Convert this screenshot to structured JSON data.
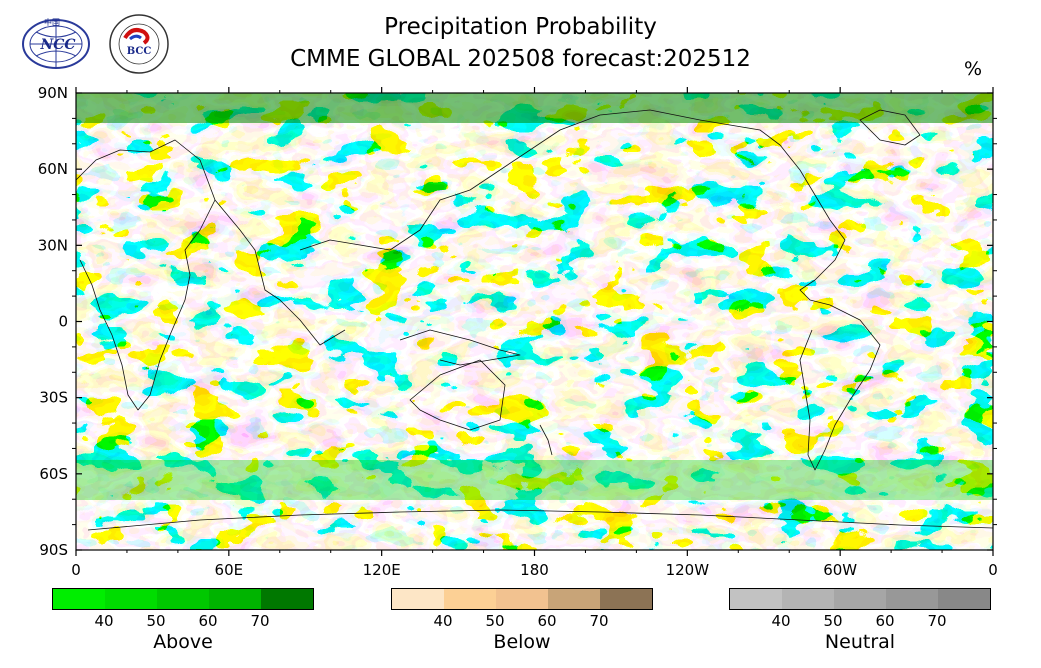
{
  "header": {
    "title_line1": "Precipitation Probability",
    "title_line2": "CMME GLOBAL 202508 forecast:202512",
    "unit": "%"
  },
  "logos": {
    "left": {
      "text": "NCC",
      "small_text": "中国"
    },
    "right": {
      "text": "BCC",
      "small_text": "BEIJING CLIMATE CENTER"
    }
  },
  "map": {
    "lat_labels": [
      "90N",
      "60N",
      "30N",
      "0",
      "30S",
      "60S",
      "90S"
    ],
    "lon_labels": [
      "0",
      "60E",
      "120E",
      "180",
      "120W",
      "60W",
      "0"
    ]
  },
  "colorbars": [
    {
      "label": "Above",
      "ticks": [
        "40",
        "50",
        "60",
        "70"
      ],
      "colors": [
        "#00ee00",
        "#00dd00",
        "#00c800",
        "#00b400",
        "#007800"
      ]
    },
    {
      "label": "Below",
      "ticks": [
        "40",
        "50",
        "60",
        "70"
      ],
      "colors": [
        "#fde6c6",
        "#fcd095",
        "#f2c290",
        "#c8a478",
        "#8c7355"
      ]
    },
    {
      "label": "Neutral",
      "ticks": [
        "40",
        "50",
        "60",
        "70"
      ],
      "colors": [
        "#c2c2c2",
        "#b4b4b4",
        "#a6a6a6",
        "#989898",
        "#888888"
      ]
    }
  ],
  "colors": {
    "above_light": "#00ee00",
    "above_dark": "#008800",
    "below_light": "#fcd095",
    "below_dark": "#8c7355",
    "neutral_light": "#c2c2c2",
    "neutral_dark": "#888888"
  }
}
